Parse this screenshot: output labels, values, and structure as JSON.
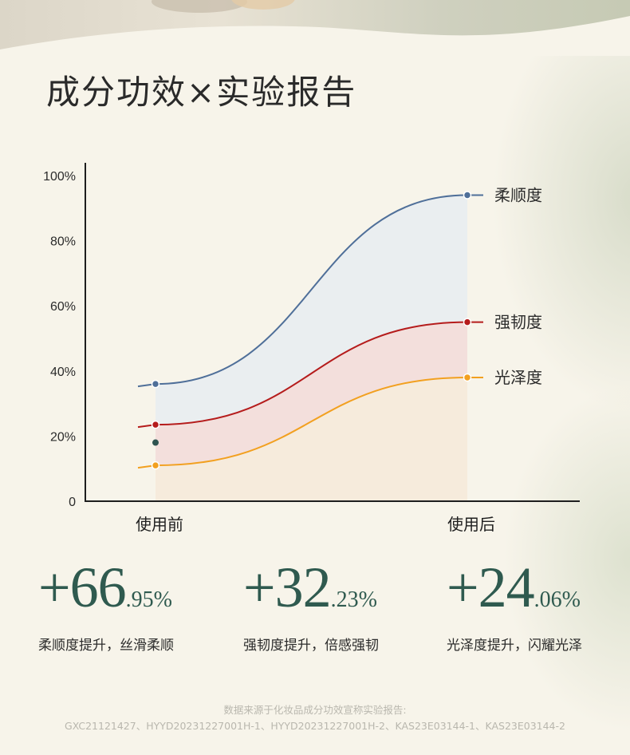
{
  "title": "成分功效×实验报告",
  "chart_data": {
    "type": "area",
    "categories": [
      "使用前",
      "使用后"
    ],
    "y_ticks": [
      "0",
      "20%",
      "40%",
      "60%",
      "80%",
      "100%"
    ],
    "ylim": [
      0,
      100
    ],
    "grid": false,
    "series": [
      {
        "name": "柔顺度",
        "values": [
          36,
          94
        ],
        "color": "#4f6f99",
        "fill": "#eaeef0"
      },
      {
        "name": "强韧度",
        "values": [
          23.5,
          55
        ],
        "color": "#b51c1c",
        "fill": "#f3dfdc"
      },
      {
        "name": "光泽度",
        "values": [
          11,
          38
        ],
        "color": "#f2a020",
        "fill": "#f6ebdc"
      }
    ],
    "extra_point": {
      "category": "使用前",
      "value": 18,
      "color": "#2e5450"
    }
  },
  "stats": [
    {
      "plus": "+",
      "int": "66",
      "dec": ".95%",
      "desc": "柔顺度提升，丝滑柔顺"
    },
    {
      "plus": "+",
      "int": "32",
      "dec": ".23%",
      "desc": "强韧度提升，倍感强韧"
    },
    {
      "plus": "+",
      "int": "24",
      "dec": ".06%",
      "desc": "光泽度提升，闪耀光泽"
    }
  ],
  "footer": {
    "line1": "数据来源于化妆品成分功效宣称实验报告:",
    "line2": "GXC21121427、HYYD20231227001H-1、HYYD20231227001H-2、KAS23E03144-1、KAS23E03144-2"
  }
}
